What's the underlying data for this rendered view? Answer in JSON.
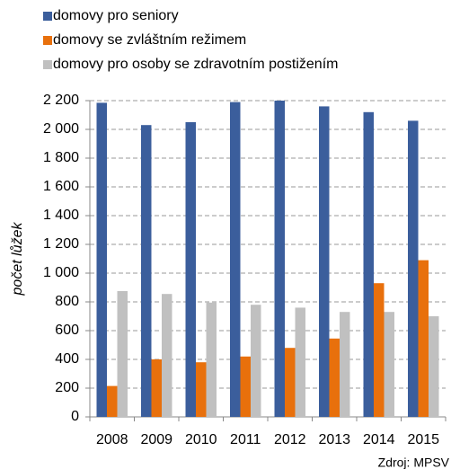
{
  "chart_data": {
    "type": "bar",
    "categories": [
      "2008",
      "2009",
      "2010",
      "2011",
      "2012",
      "2013",
      "2014",
      "2015"
    ],
    "series": [
      {
        "name": "domovy pro seniory",
        "color": "#3b5e9c",
        "values": [
          2185,
          2030,
          2050,
          2190,
          2200,
          2160,
          2120,
          2060
        ]
      },
      {
        "name": "domovy se zvláštním režimem",
        "color": "#e8700c",
        "values": [
          215,
          400,
          380,
          420,
          480,
          545,
          930,
          1090
        ]
      },
      {
        "name": "domovy pro osoby se zdravotním postižením",
        "color": "#c0c0c0",
        "values": [
          875,
          855,
          795,
          780,
          760,
          730,
          730,
          700
        ]
      }
    ],
    "ylabel": "počet lůžek",
    "source": "Zdroj: MPSV",
    "ylim": [
      0,
      2200
    ],
    "yticks": [
      0,
      200,
      400,
      600,
      800,
      {
        "value": 1000,
        "label": "1 000"
      },
      {
        "value": 1200,
        "label": "1 200"
      },
      {
        "value": 1400,
        "label": "1 400"
      },
      {
        "value": 1600,
        "label": "1 600"
      },
      {
        "value": 1800,
        "label": "1 800"
      },
      {
        "value": 2000,
        "label": "2 000"
      },
      {
        "value": 2200,
        "label": "2 200"
      }
    ],
    "grid": true
  }
}
